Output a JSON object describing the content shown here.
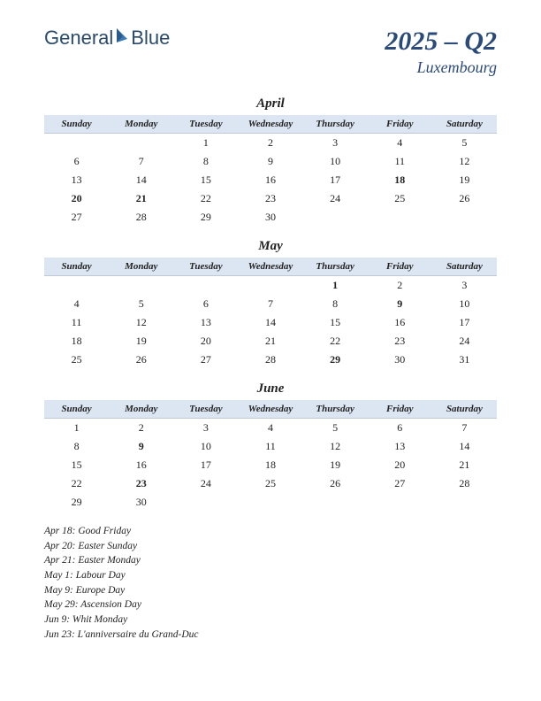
{
  "logo": {
    "text1": "General",
    "text2": "Blue"
  },
  "title": {
    "main": "2025 – Q2",
    "sub": "Luxembourg"
  },
  "colors": {
    "header_bg": "#dce5f2",
    "title_color": "#2a4a7a",
    "holiday_color": "#c02020",
    "text_color": "#222222",
    "bg": "#ffffff"
  },
  "day_headers": [
    "Sunday",
    "Monday",
    "Tuesday",
    "Wednesday",
    "Thursday",
    "Friday",
    "Saturday"
  ],
  "months": [
    {
      "name": "April",
      "weeks": [
        [
          null,
          null,
          {
            "d": 1
          },
          {
            "d": 2
          },
          {
            "d": 3
          },
          {
            "d": 4
          },
          {
            "d": 5
          }
        ],
        [
          {
            "d": 6
          },
          {
            "d": 7
          },
          {
            "d": 8
          },
          {
            "d": 9
          },
          {
            "d": 10
          },
          {
            "d": 11
          },
          {
            "d": 12
          }
        ],
        [
          {
            "d": 13
          },
          {
            "d": 14
          },
          {
            "d": 15
          },
          {
            "d": 16
          },
          {
            "d": 17
          },
          {
            "d": 18,
            "h": true
          },
          {
            "d": 19
          }
        ],
        [
          {
            "d": 20,
            "h": true
          },
          {
            "d": 21,
            "h": true
          },
          {
            "d": 22
          },
          {
            "d": 23
          },
          {
            "d": 24
          },
          {
            "d": 25
          },
          {
            "d": 26
          }
        ],
        [
          {
            "d": 27
          },
          {
            "d": 28
          },
          {
            "d": 29
          },
          {
            "d": 30
          },
          null,
          null,
          null
        ]
      ]
    },
    {
      "name": "May",
      "weeks": [
        [
          null,
          null,
          null,
          null,
          {
            "d": 1,
            "h": true
          },
          {
            "d": 2
          },
          {
            "d": 3
          }
        ],
        [
          {
            "d": 4
          },
          {
            "d": 5
          },
          {
            "d": 6
          },
          {
            "d": 7
          },
          {
            "d": 8
          },
          {
            "d": 9,
            "h": true
          },
          {
            "d": 10
          }
        ],
        [
          {
            "d": 11
          },
          {
            "d": 12
          },
          {
            "d": 13
          },
          {
            "d": 14
          },
          {
            "d": 15
          },
          {
            "d": 16
          },
          {
            "d": 17
          }
        ],
        [
          {
            "d": 18
          },
          {
            "d": 19
          },
          {
            "d": 20
          },
          {
            "d": 21
          },
          {
            "d": 22
          },
          {
            "d": 23
          },
          {
            "d": 24
          }
        ],
        [
          {
            "d": 25
          },
          {
            "d": 26
          },
          {
            "d": 27
          },
          {
            "d": 28
          },
          {
            "d": 29,
            "h": true
          },
          {
            "d": 30
          },
          {
            "d": 31
          }
        ]
      ]
    },
    {
      "name": "June",
      "weeks": [
        [
          {
            "d": 1
          },
          {
            "d": 2
          },
          {
            "d": 3
          },
          {
            "d": 4
          },
          {
            "d": 5
          },
          {
            "d": 6
          },
          {
            "d": 7
          }
        ],
        [
          {
            "d": 8
          },
          {
            "d": 9,
            "h": true
          },
          {
            "d": 10
          },
          {
            "d": 11
          },
          {
            "d": 12
          },
          {
            "d": 13
          },
          {
            "d": 14
          }
        ],
        [
          {
            "d": 15
          },
          {
            "d": 16
          },
          {
            "d": 17
          },
          {
            "d": 18
          },
          {
            "d": 19
          },
          {
            "d": 20
          },
          {
            "d": 21
          }
        ],
        [
          {
            "d": 22
          },
          {
            "d": 23,
            "h": true
          },
          {
            "d": 24
          },
          {
            "d": 25
          },
          {
            "d": 26
          },
          {
            "d": 27
          },
          {
            "d": 28
          }
        ],
        [
          {
            "d": 29
          },
          {
            "d": 30
          },
          null,
          null,
          null,
          null,
          null
        ]
      ]
    }
  ],
  "holidays": [
    "Apr 18: Good Friday",
    "Apr 20: Easter Sunday",
    "Apr 21: Easter Monday",
    "May 1: Labour Day",
    "May 9: Europe Day",
    "May 29: Ascension Day",
    "Jun 9: Whit Monday",
    "Jun 23: L'anniversaire du Grand-Duc"
  ]
}
